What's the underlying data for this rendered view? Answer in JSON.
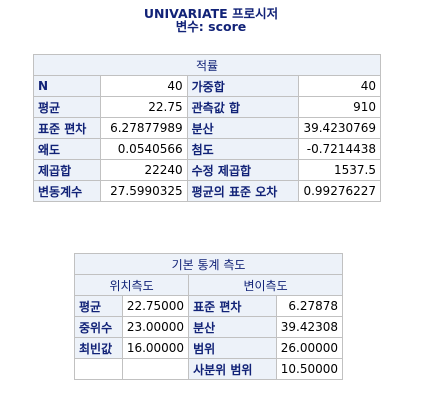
{
  "header": {
    "title": "UNIVARIATE 프로시저",
    "subtitle": "변수: score"
  },
  "moments": {
    "caption": "적률",
    "rows": [
      [
        "N",
        "40",
        "가중합",
        "40"
      ],
      [
        "평균",
        "22.75",
        "관측값 합",
        "910"
      ],
      [
        "표준 편차",
        "6.27877989",
        "분산",
        "39.4230769"
      ],
      [
        "왜도",
        "0.0540566",
        "첨도",
        "-0.7214438"
      ],
      [
        "제곱합",
        "22240",
        "수정 제곱합",
        "1537.5"
      ],
      [
        "변동계수",
        "27.5990325",
        "평균의 표준 오차",
        "0.99276227"
      ]
    ]
  },
  "basic": {
    "caption": "기본 통계 측도",
    "location_header": "위치측도",
    "variability_header": "변이측도",
    "rows": [
      [
        "평균",
        "22.75000",
        "표준 편차",
        "6.27878"
      ],
      [
        "중위수",
        "23.00000",
        "분산",
        "39.42308"
      ],
      [
        "최빈값",
        "16.00000",
        "범위",
        "26.00000"
      ],
      [
        "",
        "",
        "사분위 범위",
        "10.50000"
      ]
    ]
  }
}
